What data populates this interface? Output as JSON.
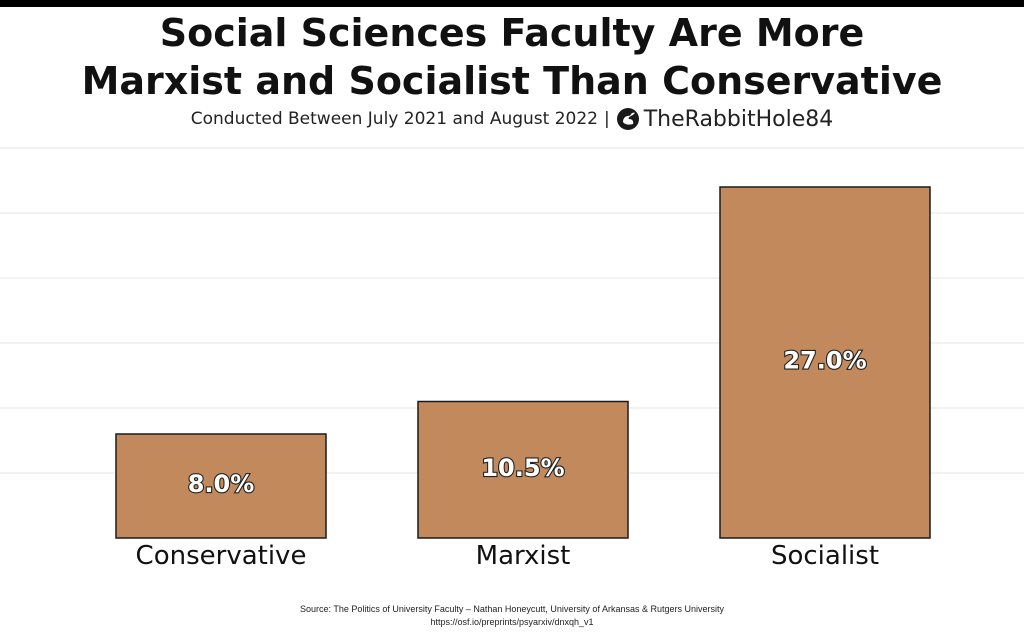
{
  "header": {
    "title_line1": "Social Sciences Faculty Are More",
    "title_line2": "Marxist and Socialist Than Conservative",
    "subtitle": "Conducted Between July 2021 and August 2022",
    "separator": "|",
    "brand": "TheRabbitHole84",
    "brand_icon": "rabbit-logo-icon"
  },
  "footer": {
    "source": "Source: The Politics of University Faculty – Nathan Honeycutt, University of Arkansas & Rutgers University",
    "url": "https://osf.io/preprints/psyarxiv/dnxqh_v1"
  },
  "colors": {
    "bar_fill": "#c28a5c",
    "bar_stroke": "#1a1a1a",
    "grid": "#e9e9e9",
    "label_fill": "#ffffff",
    "label_stroke": "#222222"
  },
  "chart_data": {
    "type": "bar",
    "title": "Social Sciences Faculty Are More Marxist and Socialist Than Conservative",
    "subtitle": "Conducted Between July 2021 and August 2022",
    "categories": [
      "Conservative",
      "Marxist",
      "Socialist"
    ],
    "values": [
      8.0,
      10.5,
      27.0
    ],
    "value_labels": [
      "8.0%",
      "10.5%",
      "27.0%"
    ],
    "unit": "%",
    "xlabel": "",
    "ylabel": "",
    "ylim": [
      0,
      30
    ],
    "grid": true,
    "legend": "none"
  }
}
